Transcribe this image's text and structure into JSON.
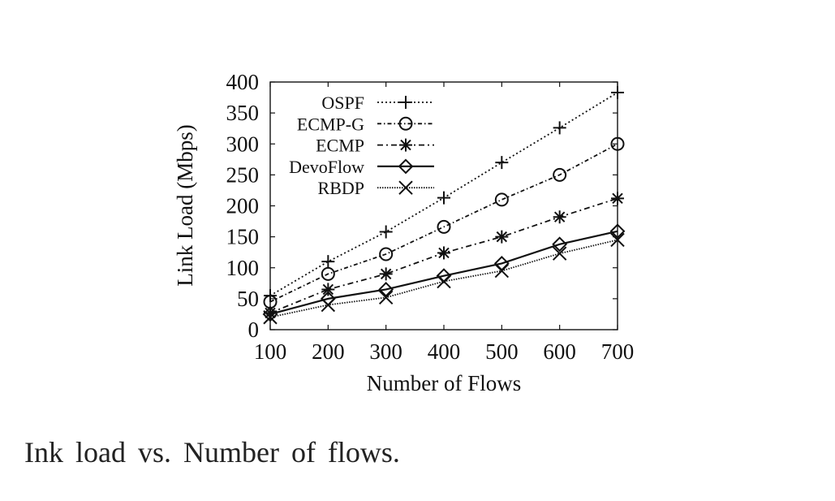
{
  "chart_data": {
    "type": "line",
    "x": [
      100,
      200,
      300,
      400,
      500,
      600,
      700
    ],
    "series": [
      {
        "name": "OSPF",
        "marker": "plus",
        "dash": "dotted",
        "values": [
          55,
          110,
          158,
          213,
          270,
          326,
          383
        ]
      },
      {
        "name": "ECMP-G",
        "marker": "circle",
        "dash": "dashdot",
        "values": [
          45,
          90,
          122,
          166,
          210,
          250,
          300
        ]
      },
      {
        "name": "ECMP",
        "marker": "star",
        "dash": "dashdotted2",
        "values": [
          27,
          65,
          90,
          124,
          150,
          182,
          212
        ]
      },
      {
        "name": "DevoFlow",
        "marker": "diamond",
        "dash": "solid",
        "values": [
          25,
          50,
          65,
          87,
          107,
          138,
          159
        ]
      },
      {
        "name": "RBDP",
        "marker": "cross",
        "dash": "finedot",
        "values": [
          20,
          40,
          52,
          78,
          95,
          123,
          145
        ]
      }
    ],
    "xlabel": "Number of Flows",
    "ylabel": "Link Load (Mbps)",
    "xlim": [
      100,
      700
    ],
    "ylim": [
      0,
      400
    ],
    "xticks": [
      100,
      200,
      300,
      400,
      500,
      600,
      700
    ],
    "yticks": [
      0,
      50,
      100,
      150,
      200,
      250,
      300,
      350,
      400
    ],
    "legend_position": "top-left",
    "grid": false
  },
  "caption": "Ink load vs. Number of flows."
}
